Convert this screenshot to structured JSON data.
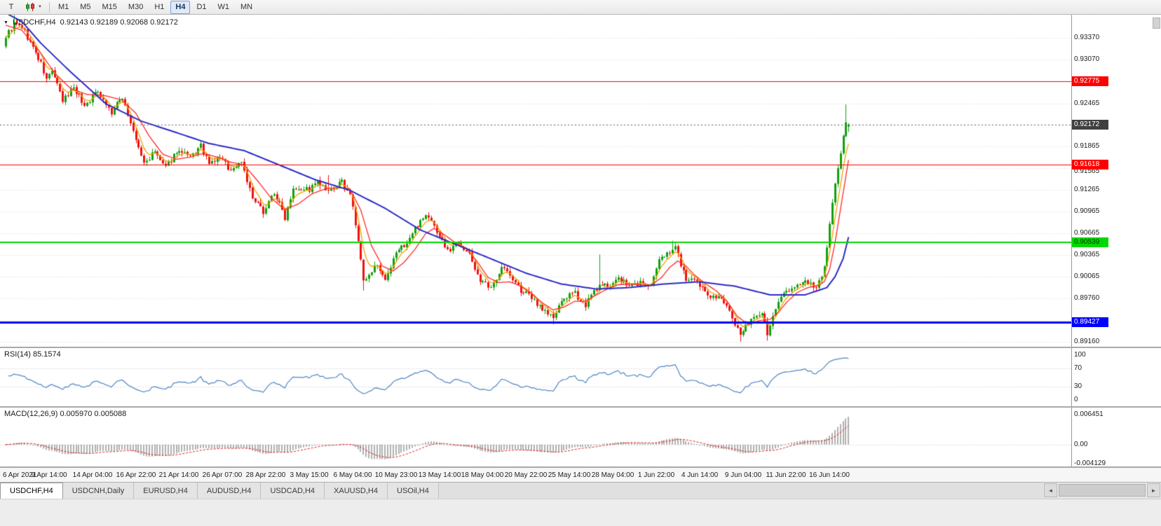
{
  "colors": {
    "up": "#0fa00f",
    "down": "#f01010",
    "ma_fast": "#f0a500",
    "ma_mid": "#ff2a2a",
    "ma_slow": "#2b2bc8",
    "rsi_line": "#4f86c6",
    "macd_hist": "#b0b0b0",
    "macd_signal": "#e02020",
    "grid": "#dadada",
    "current_line": "#666666",
    "price_box_current_bg": "#404040",
    "price_box_current_text": "#ffffff"
  },
  "toolbar": {
    "grip_label": "T",
    "caret": "▼",
    "periods": [
      {
        "label": "M1",
        "active": false
      },
      {
        "label": "M5",
        "active": false
      },
      {
        "label": "M15",
        "active": false
      },
      {
        "label": "M30",
        "active": false
      },
      {
        "label": "H1",
        "active": false
      },
      {
        "label": "H4",
        "active": true
      },
      {
        "label": "D1",
        "active": false
      },
      {
        "label": "W1",
        "active": false
      },
      {
        "label": "MN",
        "active": false
      }
    ]
  },
  "chart": {
    "menu_triangle": "▼",
    "title_symbol": "USDCHF,H4",
    "title_ohlc": "0.92143 0.92189 0.92068 0.92172",
    "y_ticks": [
      "0.93370",
      "0.93070",
      "0.92465",
      "0.91865",
      "0.91565",
      "0.91265",
      "0.90965",
      "0.90665",
      "0.90365",
      "0.90065",
      "0.89760",
      "0.89160"
    ],
    "grid_ticks": [
      "0.93370",
      "0.93070",
      "0.92770",
      "0.92465",
      "0.92165",
      "0.91865",
      "0.91565",
      "0.91265",
      "0.90965",
      "0.90665",
      "0.90365",
      "0.90065",
      "0.89760",
      "0.89460",
      "0.89160"
    ],
    "price_lines": [
      {
        "label": "0.92775",
        "value": 0.92775,
        "color": "#ff0000",
        "width": 1,
        "text": "#ffffff"
      },
      {
        "label": "0.91618",
        "value": 0.91618,
        "color": "#ff0000",
        "width": 1,
        "text": "#ffffff"
      },
      {
        "label": "0.90539",
        "value": 0.90539,
        "color": "#00d800",
        "width": 2,
        "text": "#003300"
      },
      {
        "label": "0.89427",
        "value": 0.89427,
        "color": "#0000ff",
        "width": 3,
        "text": "#ffffff"
      }
    ],
    "current_price": {
      "label": "0.92172",
      "value": 0.92172
    }
  },
  "rsi_pane": {
    "label": "RSI(14) 85.1574",
    "axis_labels": [
      {
        "text": "100",
        "value": 100
      },
      {
        "text": "70",
        "value": 70
      },
      {
        "text": "30",
        "value": 30
      },
      {
        "text": "0",
        "value": 0
      }
    ],
    "levels": [
      70,
      30
    ]
  },
  "macd_pane": {
    "label": "MACD(12,26,9) 0.005970 0.005088",
    "axis_labels": [
      {
        "text": "0.006451",
        "value": 0.006451
      },
      {
        "text": "0.00",
        "value": 0
      },
      {
        "text": "-0.004129",
        "value": -0.004129
      }
    ],
    "range": {
      "max": 0.006451,
      "min": -0.004129
    }
  },
  "time_axis": {
    "bar_step": 16,
    "labels": [
      "6 Apr 2021",
      "9 Apr 14:00",
      "14 Apr 04:00",
      "16 Apr 22:00",
      "21 Apr 14:00",
      "26 Apr 07:00",
      "28 Apr 22:00",
      "3 May 15:00",
      "6 May 04:00",
      "10 May 23:00",
      "13 May 14:00",
      "18 May 04:00",
      "20 May 22:00",
      "25 May 14:00",
      "28 May 04:00",
      "1 Jun 22:00",
      "4 Jun 14:00",
      "9 Jun 04:00",
      "11 Jun 22:00",
      "16 Jun 14:00"
    ]
  },
  "tabs": [
    {
      "label": "USDCHF,H4",
      "active": true
    },
    {
      "label": "USDCNH,Daily",
      "active": false
    },
    {
      "label": "EURUSD,H4",
      "active": false
    },
    {
      "label": "AUDUSD,H4",
      "active": false
    },
    {
      "label": "USDCAD,H4",
      "active": false
    },
    {
      "label": "XAUUSD,H4",
      "active": false
    },
    {
      "label": "USOil,H4",
      "active": false
    }
  ],
  "scrollbar": {
    "left_arrow": "◄",
    "right_arrow": "►"
  },
  "chart_data": {
    "type": "candlestick",
    "symbol": "USDCHF",
    "period": "H4",
    "bars": 312,
    "price_range": {
      "top": 0.93695,
      "bottom": 0.891
    },
    "last_ohlc": {
      "open": 0.92143,
      "high": 0.92189,
      "low": 0.92068,
      "close": 0.92172
    },
    "horizontal_levels": [
      0.92775,
      0.91618,
      0.90539,
      0.89427
    ],
    "indicators": {
      "rsi": {
        "period": 14,
        "current": 85.1574
      },
      "macd": {
        "fast": 12,
        "slow": 26,
        "signal": 9,
        "current_main": 0.00597,
        "current_signal": 0.005088
      }
    },
    "noise": {
      "seed": 9,
      "close": 0.00042,
      "wick": 0.00055
    },
    "close_waypoints": [
      [
        0,
        0.934
      ],
      [
        3,
        0.9356
      ],
      [
        6,
        0.9352
      ],
      [
        9,
        0.9331
      ],
      [
        13,
        0.9301
      ],
      [
        15,
        0.9279
      ],
      [
        17,
        0.9293
      ],
      [
        21,
        0.9249
      ],
      [
        25,
        0.927
      ],
      [
        29,
        0.9243
      ],
      [
        34,
        0.9265
      ],
      [
        39,
        0.9233
      ],
      [
        43,
        0.9256
      ],
      [
        47,
        0.9206
      ],
      [
        51,
        0.9163
      ],
      [
        55,
        0.9179
      ],
      [
        59,
        0.9156
      ],
      [
        63,
        0.9181
      ],
      [
        68,
        0.9171
      ],
      [
        72,
        0.9187
      ],
      [
        75,
        0.9161
      ],
      [
        79,
        0.9173
      ],
      [
        83,
        0.9153
      ],
      [
        87,
        0.9167
      ],
      [
        91,
        0.9113
      ],
      [
        95,
        0.9097
      ],
      [
        99,
        0.9123
      ],
      [
        103,
        0.9089
      ],
      [
        106,
        0.9131
      ],
      [
        112,
        0.9127
      ],
      [
        115,
        0.9137
      ],
      [
        119,
        0.9122
      ],
      [
        124,
        0.9137
      ],
      [
        127,
        0.9122
      ],
      [
        130,
        0.9056
      ],
      [
        132,
        0.8999
      ],
      [
        134,
        0.9006
      ],
      [
        136,
        0.9026
      ],
      [
        138,
        0.9011
      ],
      [
        140,
        0.8999
      ],
      [
        142,
        0.9016
      ],
      [
        144,
        0.9041
      ],
      [
        148,
        0.9053
      ],
      [
        152,
        0.9079
      ],
      [
        154,
        0.909
      ],
      [
        156,
        0.9089
      ],
      [
        158,
        0.9076
      ],
      [
        160,
        0.9063
      ],
      [
        163,
        0.9041
      ],
      [
        167,
        0.9056
      ],
      [
        171,
        0.9036
      ],
      [
        175,
        0.9001
      ],
      [
        179,
        0.8988
      ],
      [
        183,
        0.9022
      ],
      [
        186,
        0.9007
      ],
      [
        190,
        0.8987
      ],
      [
        194,
        0.8977
      ],
      [
        198,
        0.8962
      ],
      [
        202,
        0.8949
      ],
      [
        206,
        0.8977
      ],
      [
        210,
        0.8982
      ],
      [
        214,
        0.8967
      ],
      [
        218,
        0.8991
      ],
      [
        222,
        0.8994
      ],
      [
        226,
        0.9003
      ],
      [
        230,
        0.8993
      ],
      [
        234,
        0.8998
      ],
      [
        238,
        0.8993
      ],
      [
        241,
        0.9027
      ],
      [
        244,
        0.9041
      ],
      [
        247,
        0.9047
      ],
      [
        251,
        0.9002
      ],
      [
        255,
        0.8997
      ],
      [
        259,
        0.8982
      ],
      [
        263,
        0.8977
      ],
      [
        267,
        0.8959
      ],
      [
        269,
        0.8941
      ],
      [
        271,
        0.8927
      ],
      [
        273,
        0.8936
      ],
      [
        275,
        0.8949
      ],
      [
        277,
        0.8953
      ],
      [
        279,
        0.8959
      ],
      [
        281,
        0.8925
      ],
      [
        283,
        0.8951
      ],
      [
        285,
        0.8969
      ],
      [
        287,
        0.8986
      ],
      [
        291,
        0.8991
      ],
      [
        295,
        0.8997
      ],
      [
        299,
        0.8993
      ],
      [
        301,
        0.9003
      ],
      [
        302,
        0.9021
      ],
      [
        303,
        0.9049
      ],
      [
        304,
        0.9083
      ],
      [
        305,
        0.9106
      ],
      [
        306,
        0.9133
      ],
      [
        307,
        0.9156
      ],
      [
        308,
        0.9181
      ],
      [
        309,
        0.9201
      ],
      [
        310,
        0.9223
      ],
      [
        311,
        0.92172
      ]
    ],
    "wick_overrides": {
      "3": {
        "high": 0.9369
      },
      "119": {
        "high": 0.9147
      },
      "132": {
        "low": 0.8987
      },
      "202": {
        "low": 0.894
      },
      "219": {
        "high": 0.9037
      },
      "246": {
        "high": 0.9056
      },
      "271": {
        "low": 0.8916
      },
      "281": {
        "low": 0.89175
      },
      "310": {
        "high": 0.9245
      }
    },
    "ma_slow_waypoints": [
      [
        0,
        0.9372
      ],
      [
        6,
        0.936
      ],
      [
        13,
        0.933
      ],
      [
        24,
        0.929
      ],
      [
        37,
        0.9246
      ],
      [
        50,
        0.9222
      ],
      [
        63,
        0.9206
      ],
      [
        75,
        0.9191
      ],
      [
        88,
        0.9181
      ],
      [
        101,
        0.9161
      ],
      [
        114,
        0.9141
      ],
      [
        127,
        0.9126
      ],
      [
        140,
        0.9101
      ],
      [
        153,
        0.9071
      ],
      [
        166,
        0.9051
      ],
      [
        179,
        0.9031
      ],
      [
        192,
        0.9011
      ],
      [
        205,
        0.8996
      ],
      [
        218,
        0.8989
      ],
      [
        230,
        0.8991
      ],
      [
        243,
        0.8996
      ],
      [
        256,
        0.8999
      ],
      [
        269,
        0.8993
      ],
      [
        282,
        0.8981
      ],
      [
        295,
        0.8981
      ],
      [
        303,
        0.8991
      ],
      [
        306,
        0.9006
      ],
      [
        309,
        0.9031
      ],
      [
        311,
        0.9061
      ]
    ],
    "ma_mid_waypoints": [
      [
        0,
        0.9355
      ],
      [
        6,
        0.9348
      ],
      [
        13,
        0.9316
      ],
      [
        18,
        0.9289
      ],
      [
        24,
        0.9267
      ],
      [
        30,
        0.9259
      ],
      [
        37,
        0.9257
      ],
      [
        43,
        0.9251
      ],
      [
        48,
        0.9233
      ],
      [
        53,
        0.9201
      ],
      [
        58,
        0.9176
      ],
      [
        63,
        0.9169
      ],
      [
        68,
        0.9172
      ],
      [
        73,
        0.9177
      ],
      [
        78,
        0.9172
      ],
      [
        83,
        0.9165
      ],
      [
        88,
        0.9161
      ],
      [
        93,
        0.9139
      ],
      [
        98,
        0.9115
      ],
      [
        103,
        0.9099
      ],
      [
        108,
        0.9107
      ],
      [
        113,
        0.9121
      ],
      [
        118,
        0.9128
      ],
      [
        123,
        0.913
      ],
      [
        127,
        0.9128
      ],
      [
        131,
        0.9099
      ],
      [
        135,
        0.9049
      ],
      [
        139,
        0.9021
      ],
      [
        143,
        0.9014
      ],
      [
        147,
        0.9026
      ],
      [
        151,
        0.9044
      ],
      [
        155,
        0.9066
      ],
      [
        158,
        0.9073
      ],
      [
        162,
        0.9064
      ],
      [
        166,
        0.9053
      ],
      [
        170,
        0.9045
      ],
      [
        174,
        0.9027
      ],
      [
        178,
        0.9005
      ],
      [
        182,
        0.8998
      ],
      [
        186,
        0.8999
      ],
      [
        190,
        0.8993
      ],
      [
        194,
        0.8983
      ],
      [
        198,
        0.897
      ],
      [
        202,
        0.896
      ],
      [
        206,
        0.8964
      ],
      [
        210,
        0.8972
      ],
      [
        214,
        0.8972
      ],
      [
        218,
        0.8981
      ],
      [
        222,
        0.8989
      ],
      [
        226,
        0.8995
      ],
      [
        230,
        0.8996
      ],
      [
        234,
        0.8995
      ],
      [
        238,
        0.8994
      ],
      [
        242,
        0.9005
      ],
      [
        245,
        0.9019
      ],
      [
        248,
        0.9028
      ],
      [
        251,
        0.9021
      ],
      [
        254,
        0.9009
      ],
      [
        258,
        0.8997
      ],
      [
        262,
        0.8987
      ],
      [
        266,
        0.8973
      ],
      [
        270,
        0.8951
      ],
      [
        274,
        0.894
      ],
      [
        278,
        0.8945
      ],
      [
        282,
        0.8947
      ],
      [
        285,
        0.8956
      ],
      [
        288,
        0.897
      ],
      [
        292,
        0.8984
      ],
      [
        296,
        0.8991
      ],
      [
        300,
        0.8994
      ],
      [
        302,
        0.8999
      ],
      [
        304,
        0.9016
      ],
      [
        306,
        0.9053
      ],
      [
        308,
        0.9099
      ],
      [
        310,
        0.9145
      ],
      [
        311,
        0.9168
      ]
    ]
  }
}
